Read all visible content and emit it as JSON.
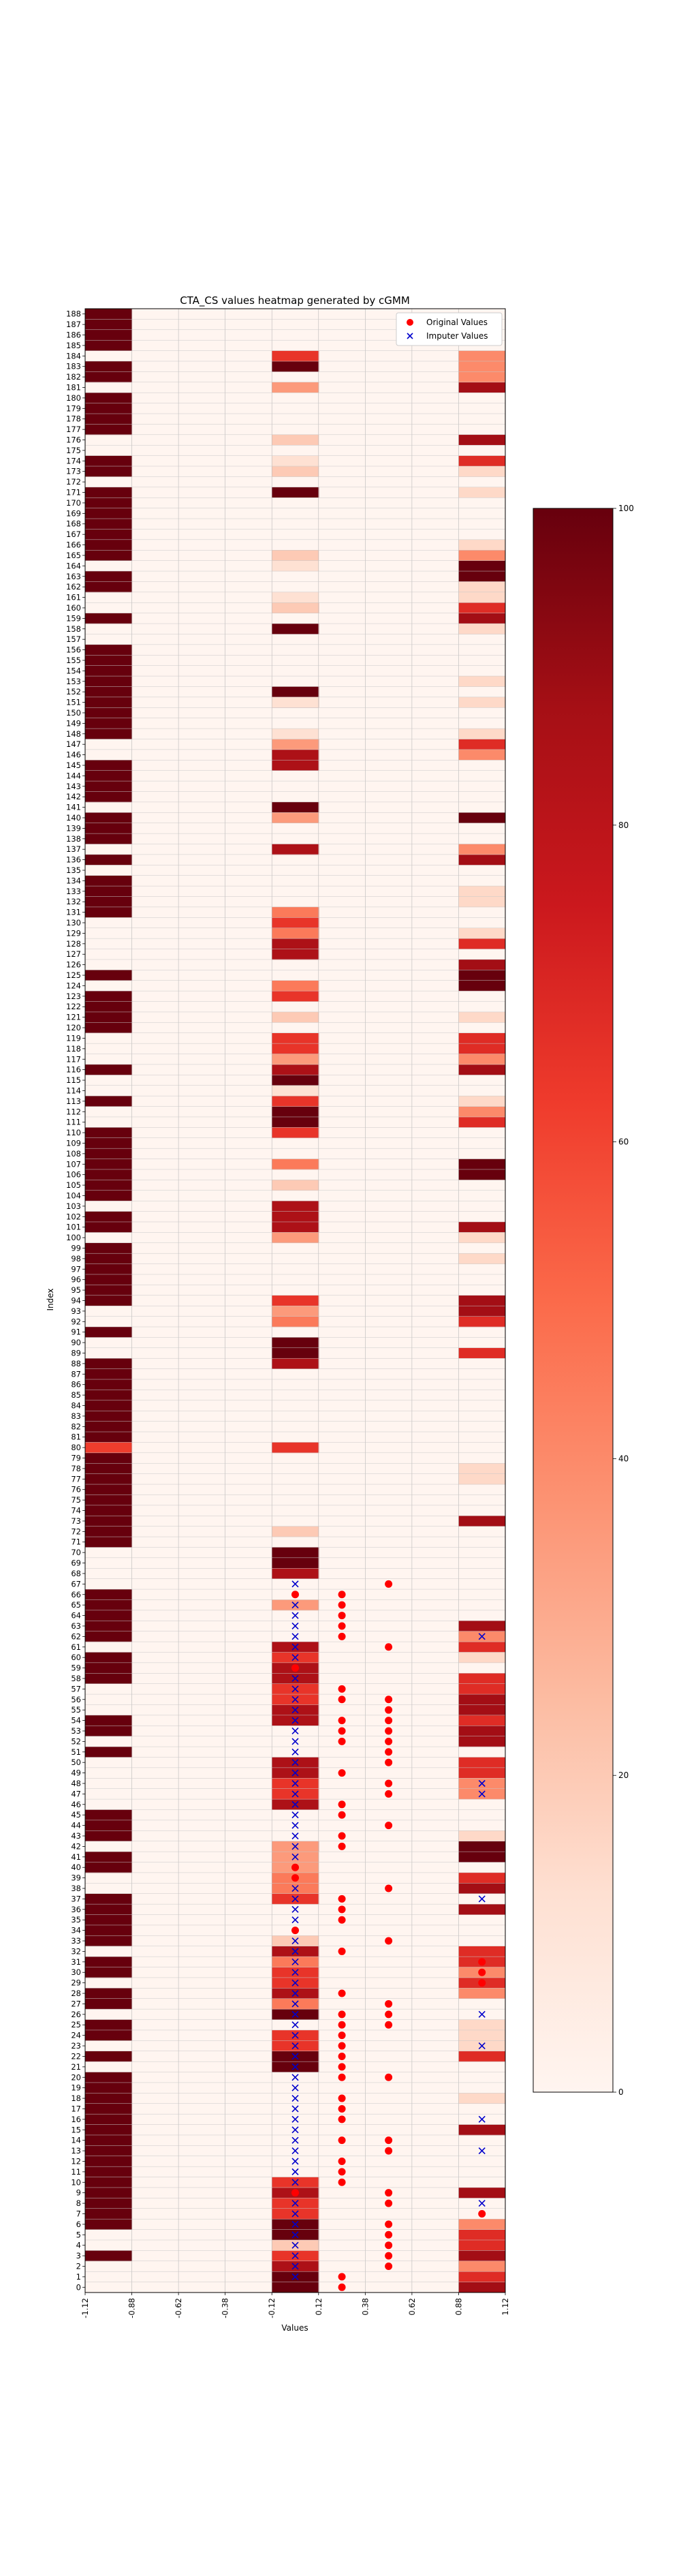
{
  "chart_data": {
    "type": "heatmap",
    "title": "CTA_CS values heatmap generated by cGMM",
    "xlabel": "Values",
    "ylabel": "Index",
    "x_tick_labels": [
      "-1.12",
      "-0.88",
      "-0.62",
      "-0.38",
      "-0.12",
      "0.12",
      "0.38",
      "0.62",
      "0.88",
      "1.12"
    ],
    "y_tick_labels": [
      "0",
      "1",
      "2",
      "3",
      "4",
      "5",
      "6",
      "7",
      "8",
      "9",
      "10",
      "11",
      "12",
      "13",
      "14",
      "15",
      "16",
      "17",
      "18",
      "19",
      "20",
      "21",
      "22",
      "23",
      "24",
      "25",
      "26",
      "27",
      "28",
      "29",
      "30",
      "31",
      "32",
      "33",
      "34",
      "35",
      "36",
      "37",
      "38",
      "39",
      "40",
      "41",
      "42",
      "43",
      "44",
      "45",
      "46",
      "47",
      "48",
      "49",
      "50",
      "51",
      "52",
      "53",
      "54",
      "55",
      "56",
      "57",
      "58",
      "59",
      "60",
      "61",
      "62",
      "63",
      "64",
      "65",
      "66",
      "67",
      "68",
      "69",
      "70",
      "71",
      "72",
      "73",
      "74",
      "75",
      "76",
      "77",
      "78",
      "79",
      "80",
      "81",
      "82",
      "83",
      "84",
      "85",
      "86",
      "87",
      "88",
      "89",
      "90",
      "91",
      "92",
      "93",
      "94",
      "95",
      "96",
      "97",
      "98",
      "99",
      "100",
      "101",
      "102",
      "103",
      "104",
      "105",
      "106",
      "107",
      "108",
      "109",
      "110",
      "111",
      "112",
      "113",
      "114",
      "115",
      "116",
      "117",
      "118",
      "119",
      "120",
      "121",
      "122",
      "123",
      "124",
      "125",
      "126",
      "127",
      "128",
      "129",
      "130",
      "131",
      "132",
      "133",
      "134",
      "135",
      "136",
      "137",
      "138",
      "139",
      "140",
      "141",
      "142",
      "143",
      "144",
      "145",
      "146",
      "147",
      "148",
      "149",
      "150",
      "151",
      "152",
      "153",
      "154",
      "155",
      "156",
      "157",
      "158",
      "159",
      "160",
      "161",
      "162",
      "163",
      "164",
      "165",
      "166",
      "167",
      "168",
      "169",
      "170",
      "171",
      "172",
      "173",
      "174",
      "175",
      "176",
      "177",
      "178",
      "179",
      "180",
      "181",
      "182",
      "183",
      "184",
      "185",
      "186",
      "187",
      "188"
    ],
    "columns": 9,
    "rows": 189,
    "colorbar": {
      "colormap": "Reds",
      "range": [
        0,
        100
      ],
      "ticks": [
        "0",
        "20",
        "40",
        "60",
        "80",
        "100"
      ]
    },
    "legend": {
      "position": "top-right",
      "entries": [
        {
          "label": "Original Values",
          "marker": "circle",
          "color": "#ff0000"
        },
        {
          "label": "Imputer Values",
          "marker": "x",
          "color": "#0000cc"
        }
      ]
    },
    "cells": [
      {
        "col": 0,
        "rows": [
          3,
          6,
          7,
          8,
          9,
          10,
          11,
          12,
          13,
          14,
          15,
          16,
          17,
          18,
          19,
          20,
          22,
          24,
          25,
          27,
          28,
          30,
          31,
          33,
          34,
          35,
          36,
          37,
          40,
          41,
          43,
          44,
          45,
          51,
          53,
          54,
          58,
          59,
          60,
          62,
          63,
          64,
          65,
          66,
          71,
          72,
          73,
          74,
          75,
          76,
          77,
          78,
          79,
          81,
          82,
          83,
          84,
          85,
          86,
          87,
          88,
          91,
          94,
          95,
          96,
          97,
          98,
          99,
          101,
          102,
          104,
          105,
          106,
          107,
          108,
          109,
          110,
          113,
          116,
          120,
          121,
          122,
          123,
          125,
          131,
          132,
          133,
          134,
          136,
          138,
          139,
          140,
          142,
          143,
          144,
          145,
          148,
          149,
          150,
          151,
          152,
          153,
          154,
          155,
          156,
          159,
          162,
          163,
          165,
          166,
          167,
          168,
          169,
          170,
          171,
          173,
          174,
          177,
          178,
          179,
          180,
          182,
          183,
          185,
          186,
          187,
          188
        ],
        "value": 100
      },
      {
        "col": 0,
        "rows": [
          80
        ],
        "value": 62
      },
      {
        "col": 4,
        "rows": [
          0,
          1,
          5,
          6,
          21,
          22,
          26,
          69,
          70,
          89,
          90,
          111,
          112,
          114,
          115,
          117,
          129,
          131,
          141,
          151,
          152,
          158,
          171,
          183
        ],
        "value": 100
      },
      {
        "col": 4,
        "rows": [
          2,
          4,
          9,
          28,
          32,
          42,
          46,
          49,
          50,
          54,
          55,
          58,
          59,
          61,
          68,
          88,
          101,
          102,
          103,
          116,
          127,
          128,
          130,
          137,
          145,
          146,
          147
        ],
        "value": 85
      },
      {
        "col": 4,
        "rows": [
          3,
          7,
          8,
          10,
          23,
          24,
          29,
          30,
          37,
          47,
          48,
          56,
          57,
          60,
          80,
          94,
          110,
          113,
          118,
          119,
          123,
          130,
          160,
          184
        ],
        "value": 65
      },
      {
        "col": 4,
        "rows": [
          27,
          31,
          38,
          39,
          92,
          107,
          124,
          129,
          131
        ],
        "value": 45
      },
      {
        "col": 4,
        "rows": [
          40,
          41,
          42,
          65,
          93,
          100,
          117,
          140,
          147,
          181
        ],
        "value": 35
      },
      {
        "col": 4,
        "rows": [
          4,
          33,
          72,
          105,
          121,
          160,
          165,
          173,
          176
        ],
        "value": 20
      },
      {
        "col": 4,
        "rows": [
          114,
          148,
          151,
          161,
          164,
          174
        ],
        "value": 12
      },
      {
        "col": 8,
        "rows": [
          1,
          4,
          5,
          22,
          29,
          31,
          32,
          36,
          39,
          49,
          50,
          54,
          57,
          58,
          61,
          89,
          92,
          111,
          118,
          119,
          128,
          136,
          147,
          160,
          174
        ],
        "value": 68
      },
      {
        "col": 8,
        "rows": [
          0,
          3,
          9,
          15,
          36,
          38,
          52,
          53,
          55,
          56,
          63,
          73,
          93,
          94,
          101,
          116,
          126,
          136,
          159,
          176,
          181
        ],
        "value": 88
      },
      {
        "col": 8,
        "rows": [
          2,
          6,
          28,
          30,
          47,
          48,
          62,
          112,
          117,
          137,
          146,
          165,
          182,
          183,
          184
        ],
        "value": 40
      },
      {
        "col": 8,
        "rows": [
          41,
          42,
          106,
          107,
          124,
          125,
          140,
          163,
          164
        ],
        "value": 100
      },
      {
        "col": 8,
        "rows": [
          18,
          23,
          24,
          25,
          43,
          60,
          77,
          78,
          98,
          100,
          113,
          121,
          129,
          132,
          133,
          148,
          151,
          153,
          158,
          161,
          162,
          166,
          171,
          173
        ],
        "value": 15
      }
    ],
    "markers": {
      "original": [
        {
          "col": 4,
          "rows": [
            9,
            34,
            39,
            40,
            59,
            66
          ]
        },
        {
          "col": 5,
          "rows": [
            0,
            1,
            10,
            11,
            12,
            14,
            16,
            17,
            18,
            20,
            21,
            22,
            23,
            24,
            25,
            26,
            28,
            32,
            35,
            36,
            37,
            42,
            43,
            45,
            46,
            49,
            52,
            53,
            54,
            56,
            57,
            62,
            63,
            64,
            65,
            66
          ]
        },
        {
          "col": 6,
          "rows": [
            2,
            3,
            4,
            5,
            6,
            8,
            9,
            13,
            14,
            20,
            25,
            26,
            27,
            33,
            38,
            44,
            47,
            48,
            50,
            51,
            52,
            53,
            54,
            55,
            56,
            61,
            67
          ]
        },
        {
          "col": 8,
          "rows": [
            7,
            29,
            30,
            31
          ]
        }
      ],
      "imputed": [
        {
          "col": 4,
          "rows": [
            1,
            2,
            3,
            4,
            5,
            6,
            7,
            8,
            10,
            11,
            12,
            13,
            14,
            15,
            16,
            17,
            18,
            19,
            20,
            21,
            22,
            23,
            24,
            25,
            26,
            27,
            28,
            29,
            30,
            31,
            32,
            33,
            35,
            36,
            37,
            38,
            41,
            42,
            43,
            44,
            45,
            46,
            47,
            48,
            49,
            50,
            51,
            52,
            53,
            54,
            55,
            56,
            57,
            58,
            60,
            61,
            62,
            63,
            64,
            65,
            67
          ]
        },
        {
          "col": 8,
          "rows": [
            8,
            13,
            16,
            23,
            26,
            37,
            47,
            48,
            62
          ]
        }
      ]
    }
  }
}
